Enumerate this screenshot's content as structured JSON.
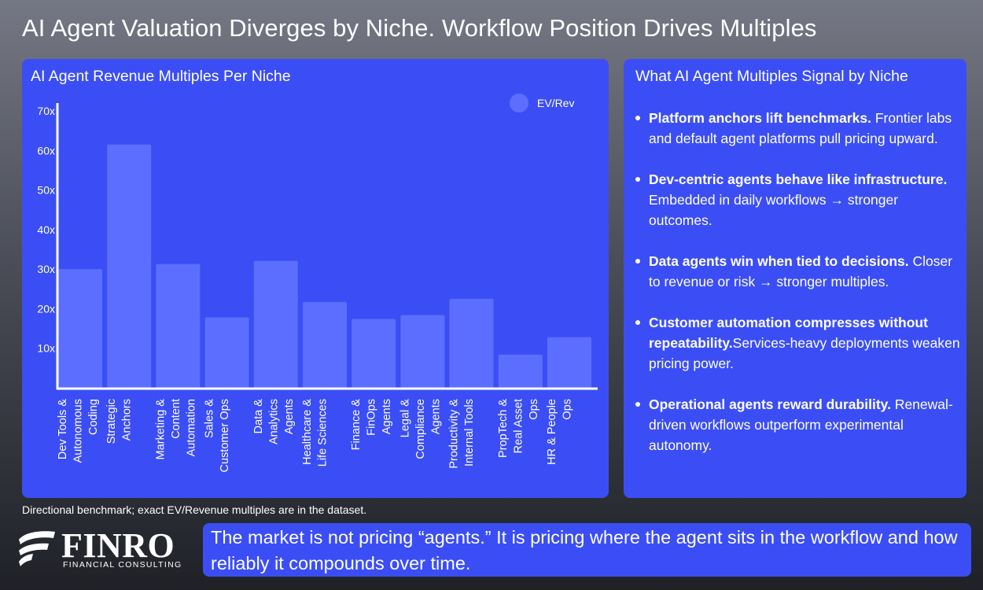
{
  "title": "AI Agent Valuation Diverges by Niche. Workflow Position Drives Multiples",
  "chart_panel": {
    "title": "AI Agent Revenue Multiples Per Niche"
  },
  "chart_data": {
    "type": "bar",
    "title": "AI Agent Revenue Multiples Per Niche",
    "categories": [
      "Dev Tools & Autonomous Coding",
      "Strategic Anchors",
      "Marketing & Content Automation",
      "Sales & Customer Ops",
      "Data & Analytics Agents",
      "Healthcare & Life Sciences",
      "Finance & FinOps Agents",
      "Legal & Compliance Agents",
      "Productivity & Internal Tools",
      "PropTech & Real Asset Ops",
      "HR & People Ops"
    ],
    "category_lines": [
      [
        "Dev Tools &",
        "Autonomous",
        "Coding"
      ],
      [
        "Strategic",
        "Anchors"
      ],
      [
        "Marketing &",
        "Content",
        "Automation"
      ],
      [
        "Sales &",
        "Customer Ops"
      ],
      [
        "Data &",
        "Analytics",
        "Agents"
      ],
      [
        "Healthcare &",
        "Life Sciences"
      ],
      [
        "Finance &",
        "FinOps",
        "Agents"
      ],
      [
        "Legal &",
        "Compliance",
        "Agents"
      ],
      [
        "Productivity &",
        "Internal Tools"
      ],
      [
        "PropTech &",
        "Real Asset",
        "Ops"
      ],
      [
        "HR & People",
        "Ops"
      ]
    ],
    "series": [
      {
        "name": "EV/Rev",
        "values": [
          30,
          61.5,
          31.3,
          17.8,
          32.1,
          21.7,
          17.4,
          18.4,
          22.5,
          8.4,
          12.8
        ]
      }
    ],
    "yticks": [
      10,
      20,
      30,
      40,
      50,
      60,
      70
    ],
    "ytick_labels": [
      "10x",
      "20x",
      "30x",
      "40x",
      "50x",
      "60x",
      "70x"
    ],
    "ylim": [
      0,
      72
    ],
    "legend_position": "top-right",
    "grid": false,
    "bar_color": "#5b6eff"
  },
  "notes": {
    "title": "What AI Agent Multiples Signal by Niche",
    "items": [
      {
        "bold": "Platform anchors lift benchmarks.",
        "text": " Frontier labs and default agent platforms pull pricing upward."
      },
      {
        "bold": "Dev-centric agents behave like infrastructure.",
        "text": " Embedded in daily workflows → stronger outcomes."
      },
      {
        "bold": "Data agents win when tied to decisions.",
        "text": " Closer to revenue or risk → stronger multiples."
      },
      {
        "bold": "Customer automation compresses without repeatability.",
        "text": "Services-heavy deployments weaken pricing power."
      },
      {
        "bold": "Operational agents reward durability.",
        "text": " Renewal-driven workflows outperform experimental autonomy."
      }
    ]
  },
  "footnote": "Directional benchmark; exact EV/Revenue multiples are in the dataset.",
  "logo": {
    "name": "FINRO",
    "subtitle": "FINANCIAL CONSULTING"
  },
  "callout": "The market is not pricing “agents.” It is pricing where the agent sits in the workflow and how reliably it compounds over time.",
  "colors": {
    "panel": "#3b4ef5",
    "bar": "#5b6eff",
    "axis": "#ffffff"
  }
}
